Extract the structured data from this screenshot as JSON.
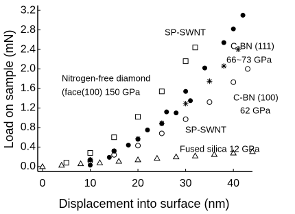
{
  "chart_data": {
    "type": "scatter",
    "xlabel": "Displacement into surface (nm)",
    "ylabel": "Load on sample (mN)",
    "xlim": [
      -1,
      44
    ],
    "ylim": [
      -0.1,
      3.3
    ],
    "xticks": [
      0,
      10,
      20,
      30,
      40
    ],
    "yticks": [
      {
        "value": 0,
        "label": "0.0"
      },
      {
        "value": 0.4,
        "label": "0.4"
      },
      {
        "value": 0.8,
        "label": "0.8"
      },
      {
        "value": 1.2,
        "label": "1.2"
      },
      {
        "value": 1.6,
        "label": "1.6"
      },
      {
        "value": 2.0,
        "label": "2.0"
      },
      {
        "value": 2.4,
        "label": "2.4"
      },
      {
        "value": 2.8,
        "label": "2.8"
      },
      {
        "value": 3.2,
        "label": "3.2"
      }
    ],
    "series": [
      {
        "marker": "circle-filled",
        "color": "#000000",
        "x": [
          10,
          14,
          18,
          22,
          26,
          30,
          34,
          38,
          40,
          42
        ],
        "values": [
          0.03,
          0.19,
          0.44,
          0.75,
          1.12,
          1.54,
          2.02,
          2.54,
          2.82,
          3.1
        ]
      },
      {
        "marker": "square-open",
        "color": "#000000",
        "x": [
          5,
          10,
          15,
          20,
          25,
          30,
          32
        ],
        "values": [
          0.08,
          0.28,
          0.6,
          1.02,
          1.54,
          2.16,
          2.44
        ]
      },
      {
        "marker": "star",
        "color": "#000000",
        "x": [
          10,
          15,
          20,
          25,
          30,
          35,
          38,
          41
        ],
        "values": [
          0.14,
          0.32,
          0.57,
          0.89,
          1.29,
          1.75,
          2.06,
          2.4
        ]
      },
      {
        "marker": "circle-open",
        "color": "#000000",
        "x": [
          10,
          15,
          20,
          25,
          30,
          35,
          40,
          43
        ],
        "values": [
          0.11,
          0.24,
          0.43,
          0.68,
          0.97,
          1.32,
          1.73,
          2.0
        ]
      },
      {
        "marker": "circle-filled",
        "color": "#000000",
        "x": [
          10,
          15,
          20,
          25,
          28,
          31
        ],
        "values": [
          0.14,
          0.32,
          0.56,
          0.88,
          1.1,
          1.35
        ]
      },
      {
        "marker": "triangle-open",
        "color": "#000000",
        "x": [
          0,
          4,
          8,
          12,
          16,
          20,
          24,
          28,
          32,
          36,
          40,
          44
        ],
        "values": [
          0,
          0.03,
          0.06,
          0.08,
          0.11,
          0.14,
          0.17,
          0.2,
          0.22,
          0.25,
          0.28,
          0.31
        ]
      }
    ],
    "annotations": [
      "SP-SWNT",
      "C-BN (111)",
      "66~73 GPa",
      "Nitrogen-free diamond",
      "(face(100) 150 GPa",
      "C-BN (100)",
      "62 GPa",
      "SP-SWNT",
      "Fused silica 12 GPa"
    ]
  }
}
